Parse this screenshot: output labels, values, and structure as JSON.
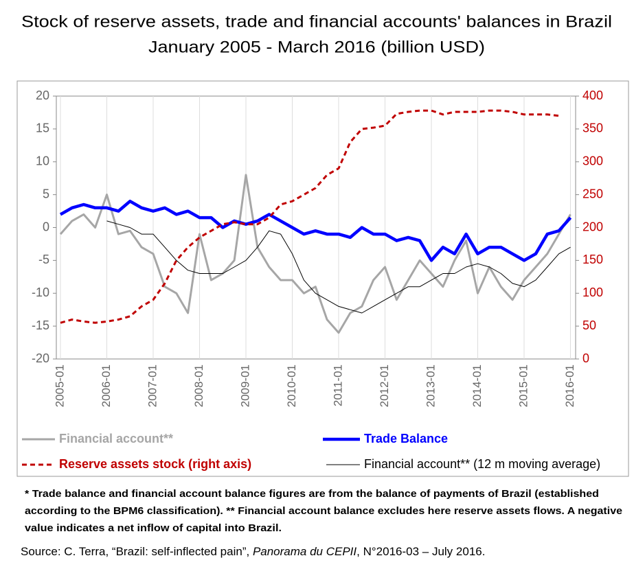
{
  "chart_data": {
    "type": "line",
    "title": [
      "Stock of reserve assets, trade and financial accounts' balances in Brazil",
      "January 2005 - March 2016 (billion USD)"
    ],
    "categories": [
      "2005-01",
      null,
      null,
      null,
      "2006-01",
      null,
      null,
      null,
      "2007-01",
      null,
      null,
      null,
      "2008-01",
      null,
      null,
      null,
      "2009-01",
      null,
      null,
      null,
      "2010-01",
      null,
      null,
      null,
      "2011-01",
      null,
      null,
      null,
      "2012-01",
      null,
      null,
      null,
      "2013-01",
      null,
      null,
      null,
      "2014-01",
      null,
      null,
      null,
      "2015-01",
      null,
      null,
      null,
      "2016-01"
    ],
    "series": [
      {
        "name": "Financial account**",
        "color": "#a6a6a6",
        "width": 3,
        "dash": "none",
        "values": [
          -1,
          1,
          2,
          0,
          5,
          -1,
          -0.5,
          -3,
          -4,
          -9,
          -10,
          -13,
          -1,
          -8,
          -7,
          -5,
          8,
          -3,
          -6,
          -8,
          -8,
          -10,
          -9,
          -14,
          -16,
          -13,
          -12,
          -8,
          -6,
          -11,
          -8,
          -5,
          -7,
          -9,
          -5,
          -2,
          -10,
          -6,
          -9,
          -11,
          -8,
          -6,
          -4,
          -1,
          2
        ]
      },
      {
        "name": "Trade Balance",
        "color": "#0000ff",
        "width": 4.5,
        "dash": "none",
        "values": [
          2,
          3,
          3.5,
          3,
          3,
          2.5,
          4,
          3,
          2.5,
          3,
          2,
          2.5,
          1.5,
          1.5,
          0,
          1,
          0.5,
          1,
          2,
          1,
          0,
          -1,
          -0.5,
          -1,
          -1,
          -1.5,
          0,
          -1,
          -1,
          -2,
          -1.5,
          -2,
          -5,
          -3,
          -4,
          -1,
          -4,
          -3,
          -3,
          -4,
          -5,
          -4,
          -1,
          -0.5,
          1.5
        ]
      },
      {
        "name": "Reserve assets stock (right axis)",
        "color": "#c00000",
        "width": 3,
        "dash": "7 5",
        "axis": "y2",
        "values": [
          55,
          60,
          57,
          55,
          57,
          60,
          65,
          80,
          90,
          115,
          150,
          170,
          185,
          195,
          205,
          208,
          205,
          205,
          215,
          235,
          240,
          250,
          260,
          280,
          290,
          330,
          350,
          352,
          355,
          373,
          376,
          378,
          378,
          372,
          376,
          376,
          376,
          378,
          378,
          376,
          372,
          372,
          372,
          370,
          null
        ]
      },
      {
        "name": "Financial account** (12 m moving average)",
        "color": "#000000",
        "width": 1,
        "dash": "none",
        "values": [
          null,
          null,
          null,
          null,
          1,
          0.5,
          0,
          -1,
          -1,
          -3,
          -5,
          -6.5,
          -7,
          -7,
          -7,
          -6,
          -5,
          -3,
          -0.5,
          -1,
          -4,
          -8,
          -10,
          -11,
          -12,
          -12.5,
          -13,
          -12,
          -11,
          -10,
          -9,
          -9,
          -8,
          -7,
          -7,
          -6,
          -5.5,
          -6,
          -7,
          -8.5,
          -9,
          -8,
          -6,
          -4,
          -3
        ]
      }
    ],
    "ylim": [
      -20,
      20
    ],
    "yticks": [
      -20,
      -15,
      -10,
      -5,
      0,
      5,
      10,
      15,
      20
    ],
    "y2lim": [
      0,
      400
    ],
    "y2ticks": [
      0,
      50,
      100,
      150,
      200,
      250,
      300,
      350,
      400
    ],
    "y2color": "#c00000",
    "grid": true,
    "legend": "bottom",
    "note": [
      "* Trade balance and financial account balance figures are from the balance of payments of Brazil (established",
      "according to the BPM6 classification). ** Financial account balance excludes here reserve assets flows. A negative",
      "value indicates a net inflow of capital into Brazil."
    ],
    "source": [
      "Source: C. Terra, “Brazil: self-inflected pain”, ",
      "Panorama du CEPII",
      ", N°2016-03 – July 2016."
    ]
  }
}
